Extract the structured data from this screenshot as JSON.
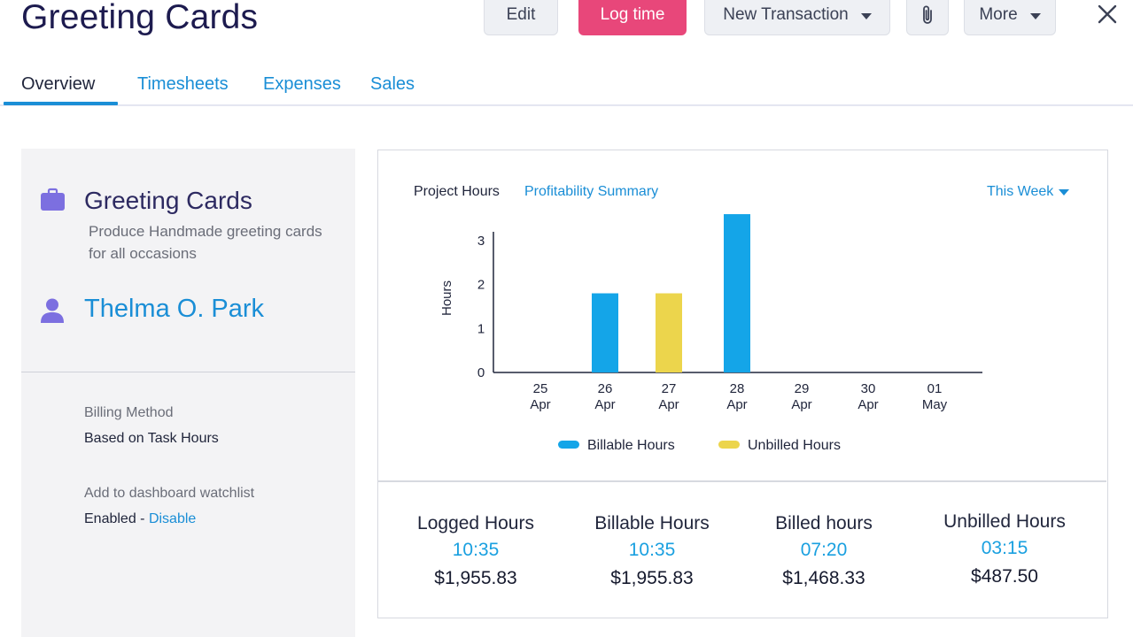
{
  "header": {
    "title": "Greeting Cards",
    "edit_label": "Edit",
    "log_time_label": "Log time",
    "new_transaction_label": "New Transaction",
    "more_label": "More"
  },
  "tabs": [
    {
      "label": "Overview"
    },
    {
      "label": "Timesheets"
    },
    {
      "label": "Expenses"
    },
    {
      "label": "Sales"
    }
  ],
  "project": {
    "name": "Greeting Cards",
    "description": "Produce Handmade greeting cards for all occasions",
    "customer": "Thelma O. Park",
    "billing_method_label": "Billing Method",
    "billing_method_value": "Based on Task Hours",
    "watchlist_label": "Add to dashboard watchlist",
    "watchlist_status": "Enabled",
    "watchlist_separator": " - ",
    "watchlist_action": "Disable"
  },
  "chart_panel": {
    "tab_project_hours": "Project Hours",
    "tab_profitability": "Profitability Summary",
    "period": "This Week"
  },
  "chart_data": {
    "type": "bar",
    "ylabel": "Hours",
    "ylim": [
      0,
      3.4
    ],
    "yticks": [
      0,
      1,
      2,
      3
    ],
    "categories": [
      {
        "day": "25",
        "month": "Apr"
      },
      {
        "day": "26",
        "month": "Apr"
      },
      {
        "day": "27",
        "month": "Apr"
      },
      {
        "day": "28",
        "month": "Apr"
      },
      {
        "day": "29",
        "month": "Apr"
      },
      {
        "day": "30",
        "month": "Apr"
      },
      {
        "day": "01",
        "month": "May"
      }
    ],
    "series": [
      {
        "name": "Billable Hours",
        "color": "#14a5e8",
        "values": [
          0,
          1.8,
          0,
          3.6,
          0,
          0,
          0
        ]
      },
      {
        "name": "Unbilled Hours",
        "color": "#ecd54c",
        "values": [
          0,
          0,
          1.8,
          0,
          0,
          0,
          0
        ]
      }
    ],
    "legend_position": "bottom-center"
  },
  "stats": [
    {
      "label": "Logged Hours",
      "time": "10:35",
      "amount": "$1,955.83"
    },
    {
      "label": "Billable Hours",
      "time": "10:35",
      "amount": "$1,955.83"
    },
    {
      "label": "Billed hours",
      "time": "07:20",
      "amount": "$1,468.33"
    },
    {
      "label": "Unbilled Hours",
      "time": "03:15",
      "amount": "$487.50"
    }
  ],
  "colors": {
    "accent": "#1a8ed6",
    "primary_button": "#e8477a",
    "icon_purple": "#7c6fe0"
  }
}
